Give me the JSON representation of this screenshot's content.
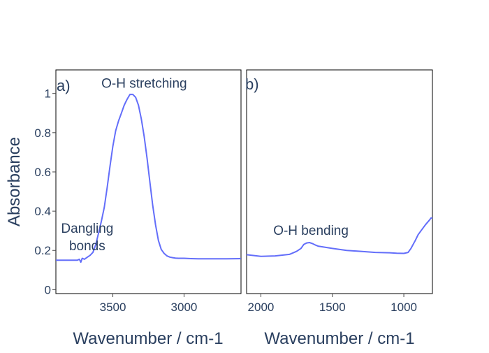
{
  "chart_data": [
    {
      "panel": "a)",
      "type": "line",
      "xlabel": "Wavenumber / cm-1",
      "ylabel": "Absorbance",
      "x_reversed": true,
      "xlim": [
        3900,
        2600
      ],
      "ylim": [
        -0.02,
        1.12
      ],
      "xticks": [
        3500,
        3000
      ],
      "yticks": [
        0,
        0.2,
        0.4,
        0.6,
        0.8,
        1
      ],
      "ytick_labels": [
        "0",
        "0.2",
        "0.4",
        "0.6",
        "0.8",
        "1"
      ],
      "color": "#636efa",
      "annotations": [
        {
          "text": "O-H stretching",
          "x": 3280,
          "y": 1.03
        },
        {
          "text": "Dangling",
          "x": 3680,
          "y": 0.29
        },
        {
          "text": "bonds",
          "x": 3680,
          "y": 0.2
        }
      ],
      "x": [
        3900,
        3800,
        3750,
        3735,
        3725,
        3715,
        3700,
        3680,
        3660,
        3640,
        3620,
        3600,
        3580,
        3560,
        3540,
        3520,
        3500,
        3480,
        3460,
        3440,
        3420,
        3400,
        3380,
        3360,
        3340,
        3320,
        3300,
        3280,
        3260,
        3240,
        3220,
        3200,
        3180,
        3160,
        3140,
        3120,
        3100,
        3080,
        3060,
        3040,
        3020,
        3000,
        2950,
        2900,
        2800,
        2700,
        2600
      ],
      "y": [
        0.15,
        0.15,
        0.15,
        0.155,
        0.14,
        0.16,
        0.155,
        0.165,
        0.175,
        0.19,
        0.23,
        0.29,
        0.35,
        0.42,
        0.52,
        0.63,
        0.73,
        0.81,
        0.86,
        0.9,
        0.94,
        0.97,
        0.995,
        0.995,
        0.98,
        0.94,
        0.87,
        0.78,
        0.67,
        0.55,
        0.43,
        0.33,
        0.25,
        0.205,
        0.185,
        0.172,
        0.166,
        0.163,
        0.161,
        0.16,
        0.16,
        0.16,
        0.158,
        0.157,
        0.157,
        0.157,
        0.158
      ]
    },
    {
      "panel": "b)",
      "type": "line",
      "xlabel": "Wavenumber / cm-1",
      "x_reversed": true,
      "xlim": [
        2100,
        800
      ],
      "ylim": [
        -0.02,
        1.12
      ],
      "xticks": [
        2000,
        1500,
        1000
      ],
      "color": "#636efa",
      "annotations": [
        {
          "text": "O-H bending",
          "x": 1650,
          "y": 0.28
        }
      ],
      "x": [
        2100,
        2000,
        1900,
        1800,
        1750,
        1720,
        1700,
        1680,
        1660,
        1640,
        1620,
        1600,
        1500,
        1400,
        1300,
        1200,
        1100,
        1050,
        1000,
        970,
        950,
        920,
        900,
        880,
        850,
        820,
        810,
        800
      ],
      "y": [
        0.178,
        0.17,
        0.172,
        0.18,
        0.195,
        0.21,
        0.23,
        0.238,
        0.24,
        0.235,
        0.228,
        0.222,
        0.21,
        0.2,
        0.195,
        0.19,
        0.188,
        0.186,
        0.185,
        0.19,
        0.21,
        0.25,
        0.28,
        0.3,
        0.33,
        0.355,
        0.365,
        0.365
      ]
    }
  ]
}
